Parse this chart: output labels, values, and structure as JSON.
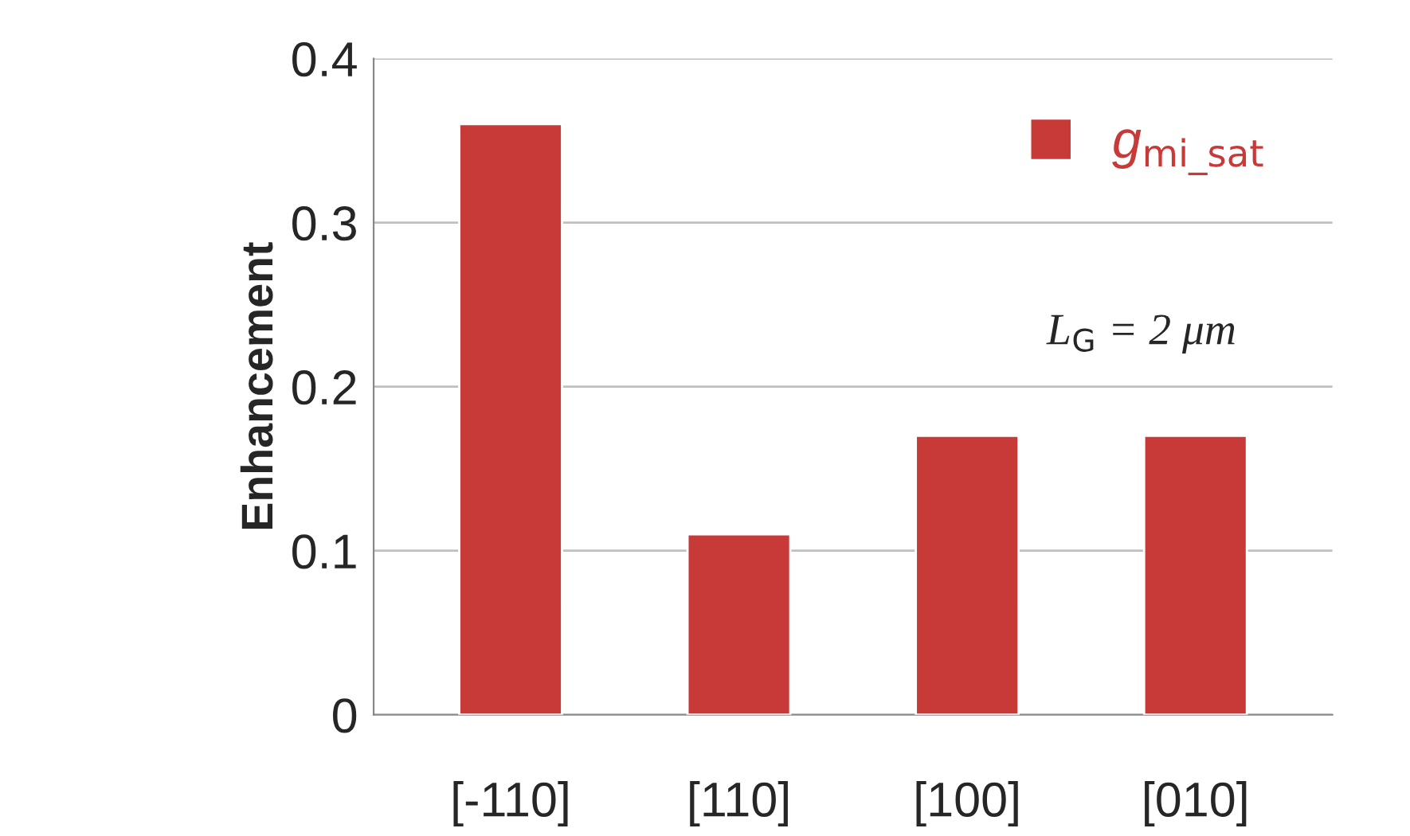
{
  "chart_data": {
    "type": "bar",
    "ylabel": "Enhancement",
    "categories": [
      "[-110]",
      "[110]",
      "[100]",
      "[010]"
    ],
    "series": [
      {
        "name": "g$_{mi_sat}$",
        "color": "#c83a38",
        "values": [
          0.36,
          0.11,
          0.17,
          0.17
        ]
      }
    ],
    "ylim": [
      0,
      0.4
    ],
    "yticks": [
      0,
      0.1,
      0.2,
      0.3,
      0.4
    ],
    "grid": "y",
    "legend": "top right",
    "annotations": [
      {
        "text": "L$_{G}$ = 2 μm"
      }
    ]
  }
}
